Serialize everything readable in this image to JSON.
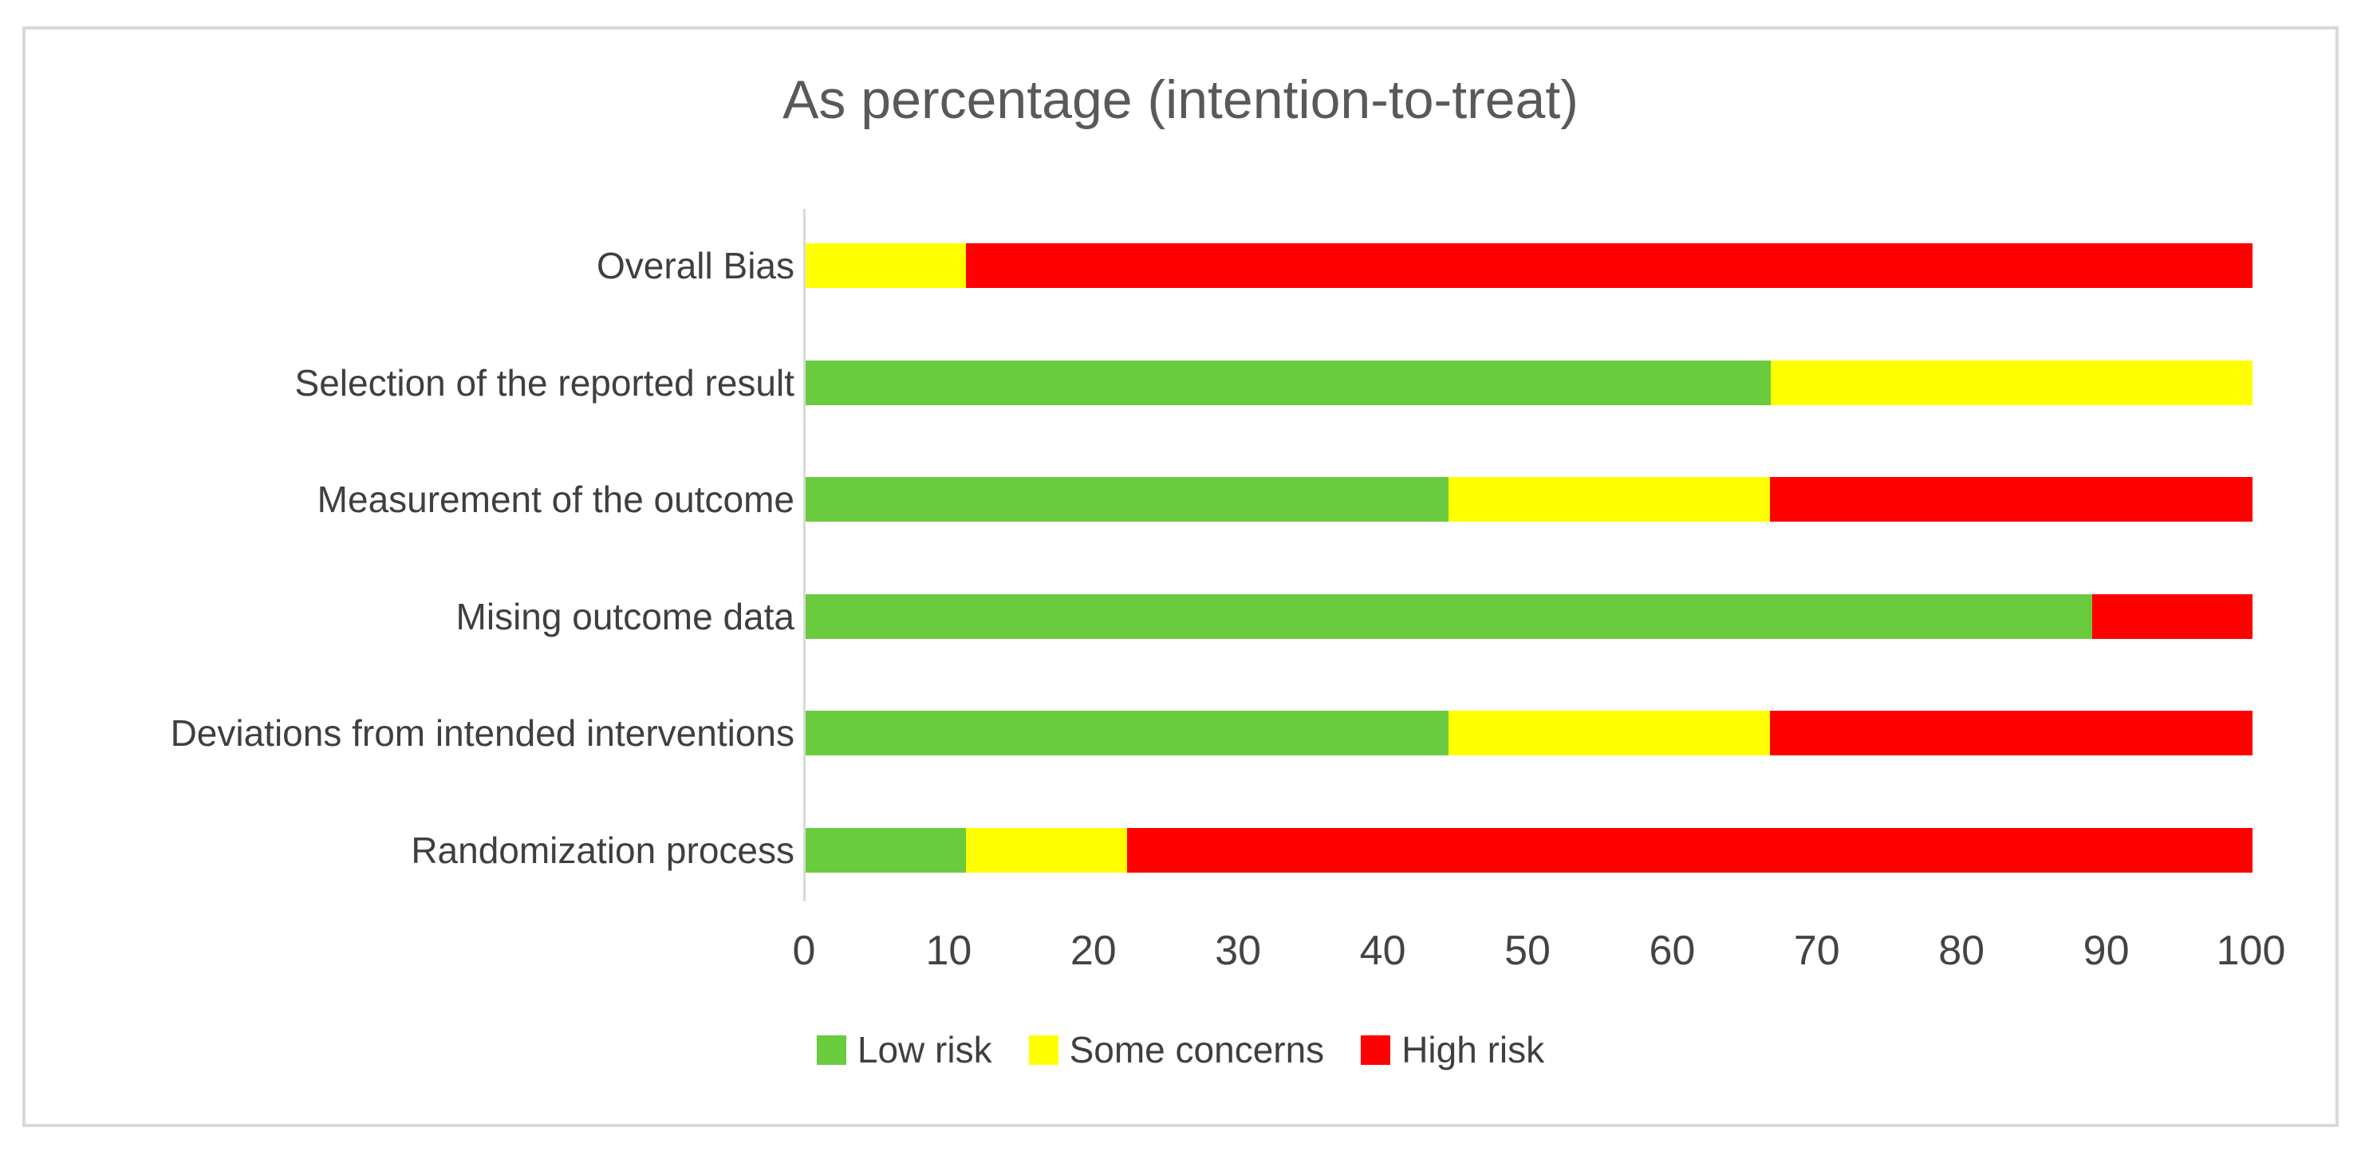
{
  "chart_data": {
    "type": "bar",
    "orientation": "horizontal",
    "stacked": true,
    "title": "As percentage (intention-to-treat)",
    "categories": [
      "Overall Bias",
      "Selection of the reported result",
      "Measurement of the outcome",
      "Mising outcome data",
      "Deviations from intended interventions",
      "Randomization process"
    ],
    "series": [
      {
        "name": "Low risk",
        "color": "#6bcb3e",
        "values": [
          0,
          66.7,
          44.4,
          88.9,
          44.4,
          11.1
        ]
      },
      {
        "name": "Some concerns",
        "color": "#ffff00",
        "values": [
          11.1,
          33.3,
          22.2,
          0,
          22.2,
          11.1
        ]
      },
      {
        "name": "High risk",
        "color": "#ff0000",
        "values": [
          88.9,
          0,
          33.3,
          11.1,
          33.3,
          77.8
        ]
      }
    ],
    "x_ticks": [
      "0",
      "10",
      "20",
      "30",
      "40",
      "50",
      "60",
      "70",
      "80",
      "90",
      "100"
    ],
    "xlabel": "",
    "ylabel": "",
    "xlim": [
      0,
      100
    ],
    "grid": false,
    "legend_position": "bottom",
    "axis_color": "#d9d9d9",
    "title_color": "#595959",
    "label_color": "#3f3f3f"
  }
}
